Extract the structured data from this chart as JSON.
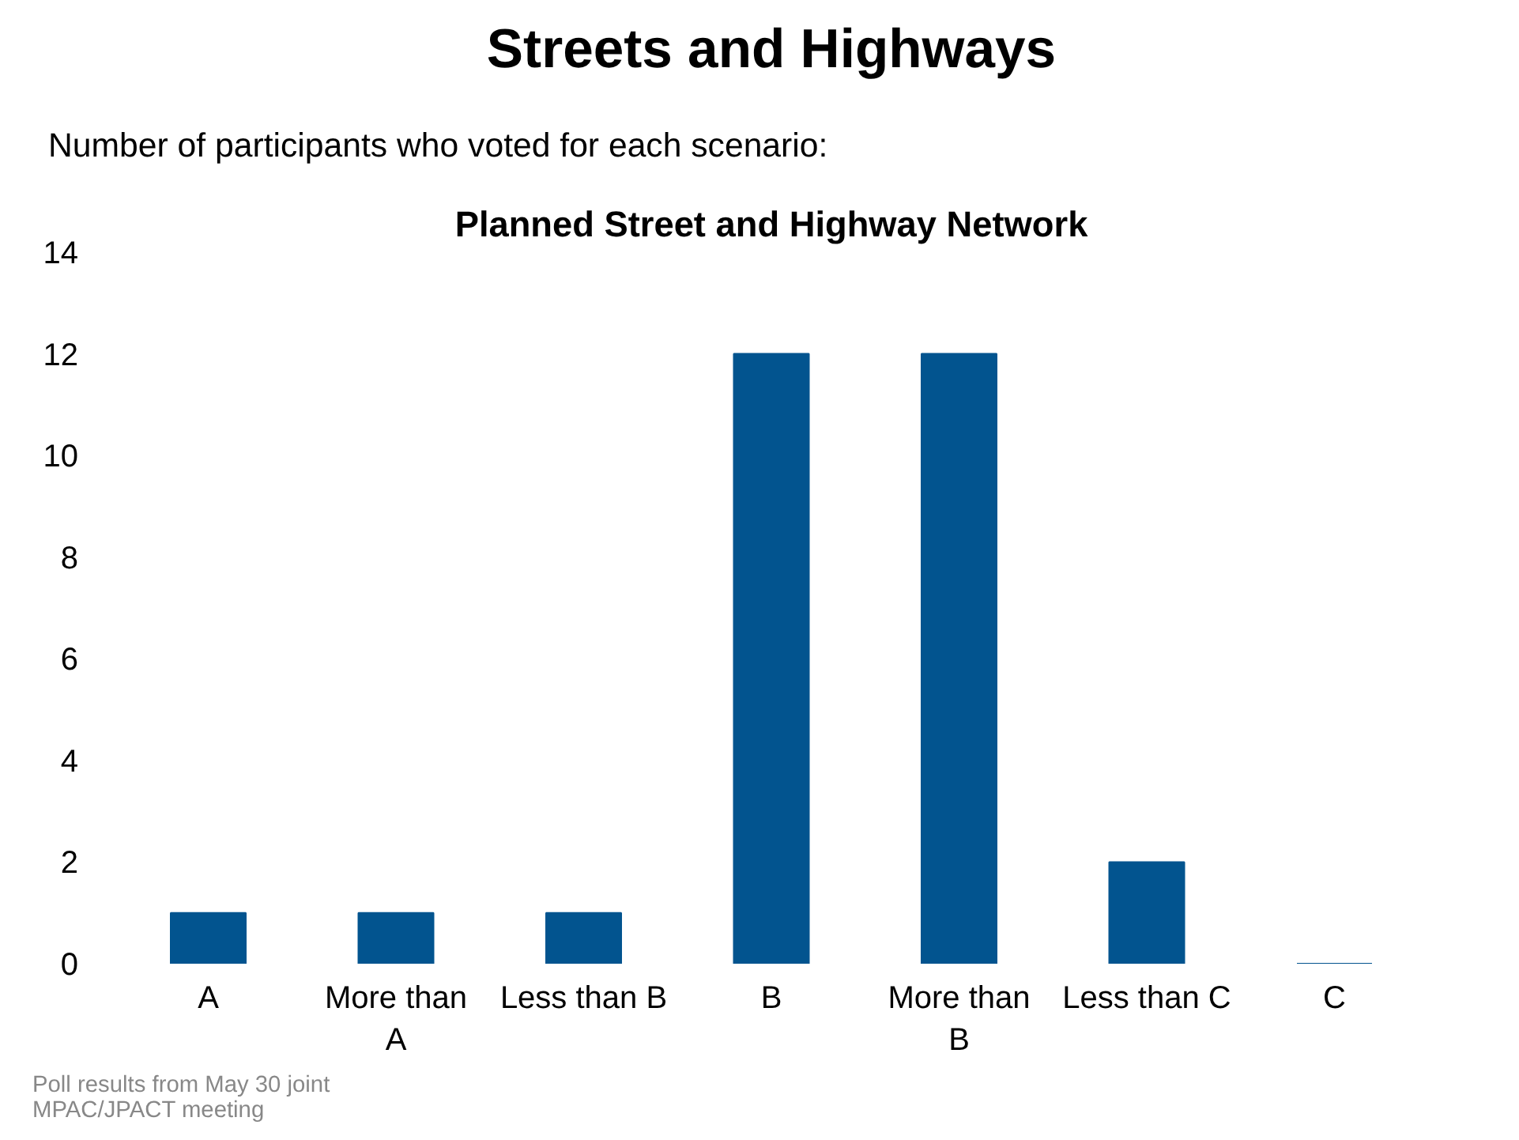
{
  "chart_data": {
    "type": "bar",
    "title": "Streets and Highways",
    "subtitle": "Number of participants who voted for each scenario:",
    "annotations": [
      "Planned Street and Highway Network",
      "Poll results from May 30  joint\nMPAC/JPACT meeting"
    ],
    "categories": [
      "A",
      "More than\nA",
      "Less than B",
      "B",
      "More than\nB",
      "Less than C",
      "C"
    ],
    "series": [
      {
        "color": "#02548f",
        "values": [
          1,
          1,
          1,
          12,
          12,
          2,
          0
        ]
      }
    ],
    "ylim": [
      0,
      14
    ],
    "yticks": [
      0,
      2,
      4,
      6,
      8,
      10,
      12,
      14
    ],
    "grid": false
  }
}
